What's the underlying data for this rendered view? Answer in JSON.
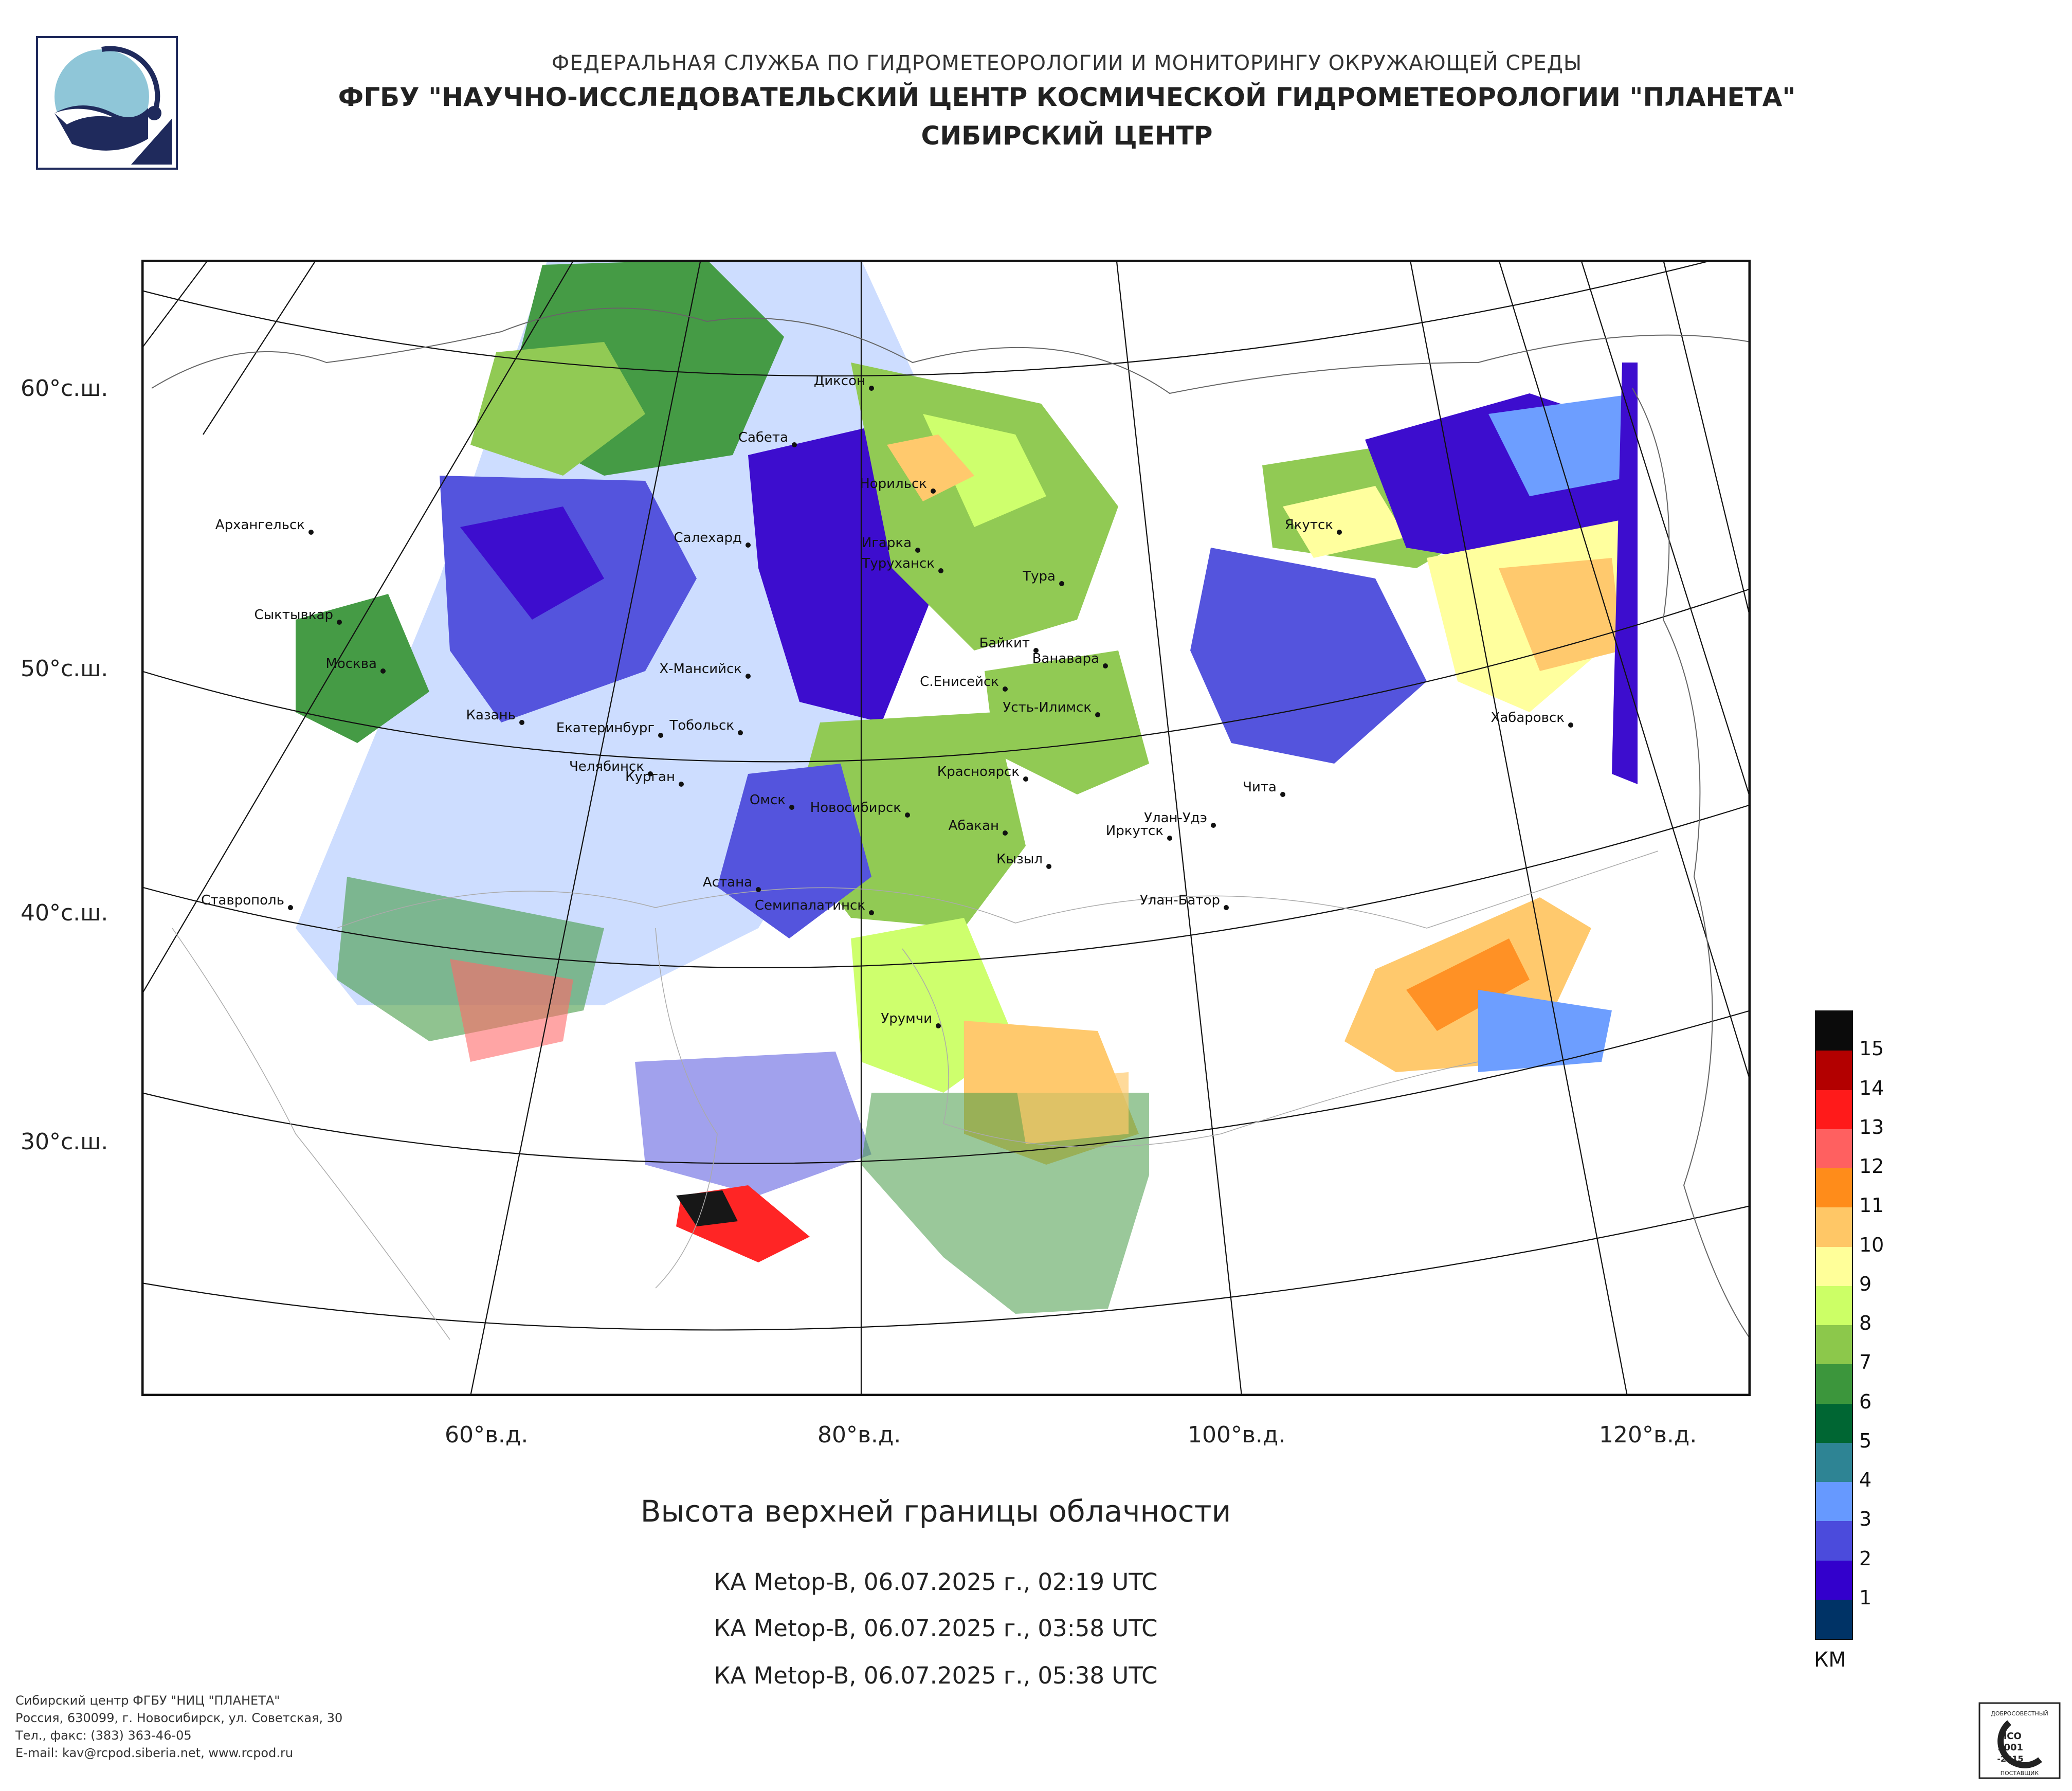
{
  "header": {
    "line1": "ФЕДЕРАЛЬНАЯ СЛУЖБА ПО ГИДРОМЕТЕОРОЛОГИИ И МОНИТОРИНГУ ОКРУЖАЮЩЕЙ СРЕДЫ",
    "line2": "ФГБУ \"НАУЧНО-ИССЛЕДОВАТЕЛЬСКИЙ ЦЕНТР КОСМИЧЕСКОЙ ГИДРОМЕТЕОРОЛОГИИ \"ПЛАНЕТА\"",
    "line3": "СИБИРСКИЙ ЦЕНТР"
  },
  "map": {
    "lat_labels": [
      "60°с.ш.",
      "50°с.ш.",
      "40°с.ш.",
      "30°с.ш."
    ],
    "lon_labels": [
      "60°в.д.",
      "80°в.д.",
      "100°в.д.",
      "120°в.д."
    ],
    "cities": [
      "Диксон",
      "Сабета",
      "Норильск",
      "Архангельск",
      "Салехард",
      "Игарка",
      "Туруханск",
      "Тура",
      "Якутск",
      "Сыктывкар",
      "Байкит",
      "Ванавара",
      "Москва",
      "Х-Мансийск",
      "С.Енисейск",
      "Усть-Илимск",
      "Казань",
      "Екатеринбург",
      "Тобольск",
      "Хабаровск",
      "Челябинск",
      "Курган",
      "Красноярск",
      "Чита",
      "Омск",
      "Новосибирск",
      "Абакан",
      "Улан-Удэ",
      "Иркутск",
      "Кызыл",
      "Астана",
      "Ставрополь",
      "Семипалатинск",
      "Улан-Батор",
      "Урумчи"
    ]
  },
  "legend": {
    "unit": "КМ",
    "levels": [
      {
        "label": "15",
        "color": "#0b0b0b"
      },
      {
        "label": "14",
        "color": "#b30000"
      },
      {
        "label": "13",
        "color": "#ff1a1a"
      },
      {
        "label": "12",
        "color": "#ff6060"
      },
      {
        "label": "11",
        "color": "#ff8c1a"
      },
      {
        "label": "10",
        "color": "#ffc766"
      },
      {
        "label": "9",
        "color": "#ffff99"
      },
      {
        "label": "8",
        "color": "#ccff66"
      },
      {
        "label": "7",
        "color": "#8cc84b"
      },
      {
        "label": "6",
        "color": "#3c963c"
      },
      {
        "label": "5",
        "color": "#006633"
      },
      {
        "label": "4",
        "color": "#2e8494"
      },
      {
        "label": "3",
        "color": "#6699ff"
      },
      {
        "label": "2",
        "color": "#4b4bdc"
      },
      {
        "label": "1",
        "color": "#3300cc"
      },
      {
        "label": "",
        "color": "#003366"
      }
    ]
  },
  "title": "Высота верхней границы облачности",
  "passes": [
    "КА Metop-B, 06.07.2025 г., 02:19 UTC",
    "КА Metop-B, 06.07.2025 г., 03:58 UTC",
    "КА Metop-B, 06.07.2025 г., 05:38 UTC"
  ],
  "footer": {
    "line1": "Сибирский центр ФГБУ \"НИЦ \"ПЛАНЕТА\"",
    "line2": "Россия, 630099, г. Новосибирск, ул. Советская, 30",
    "line3": "Тел., факс: (383) 363-46-05",
    "line4": "E-mail: kav@rcpod.siberia.net, www.rcpod.ru"
  },
  "iso_badge": {
    "top": "ДОБРОСОВЕСТНЫЙ",
    "code1": "ИСО",
    "code2": "9001",
    "code3": "-2015",
    "bottom": "ПОСТАВЩИК"
  }
}
